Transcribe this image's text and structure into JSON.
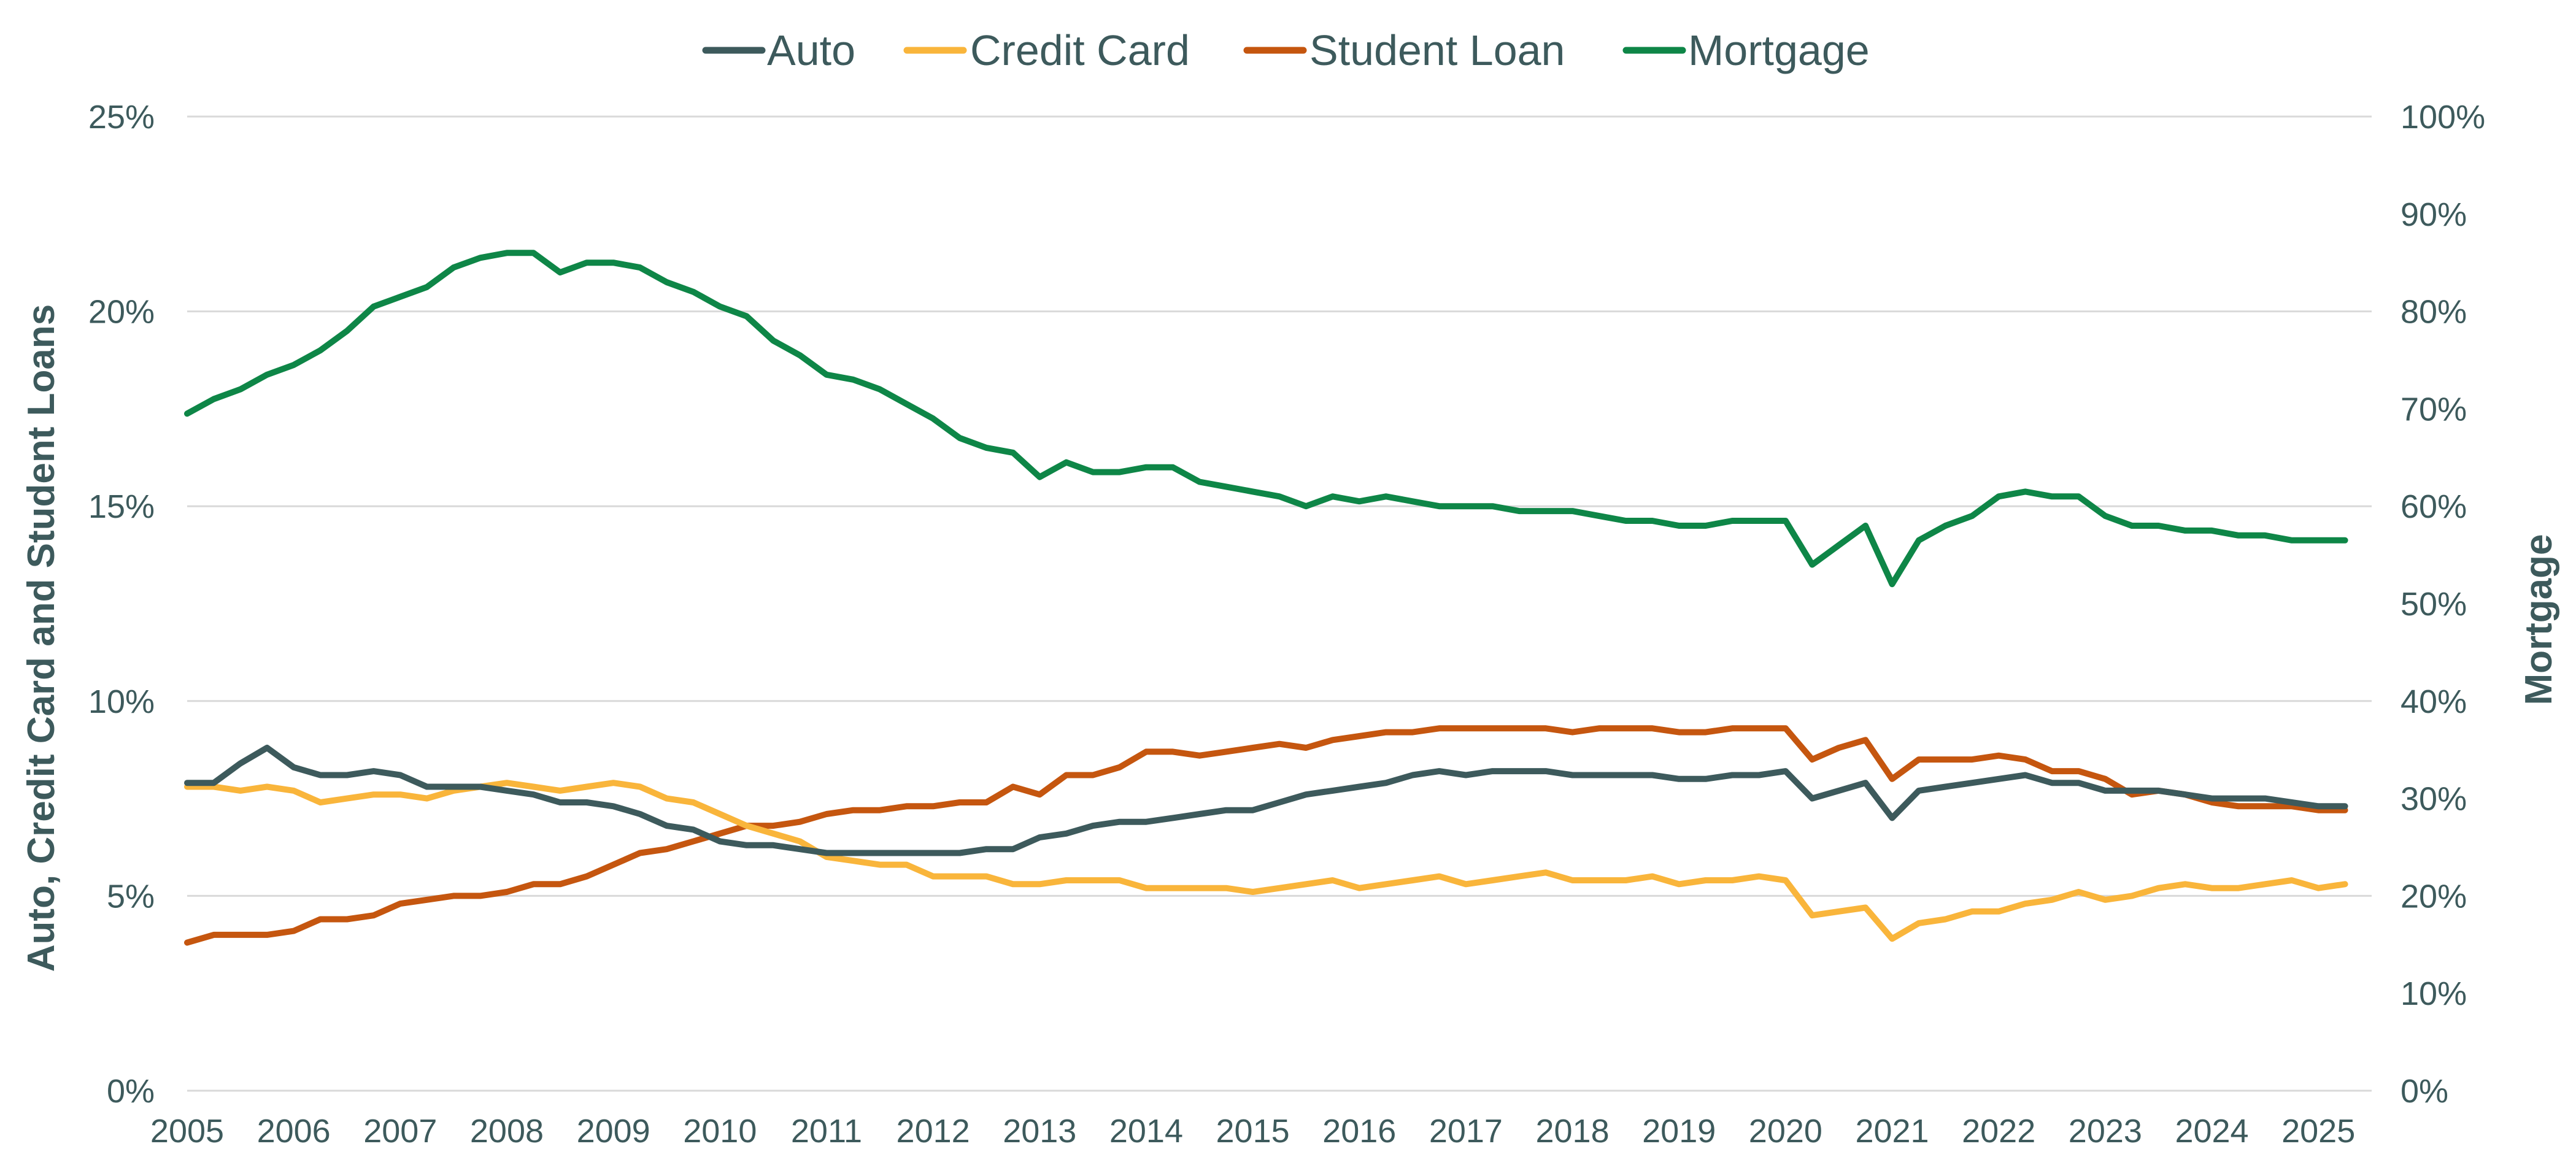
{
  "chart_data": {
    "type": "line",
    "title": "",
    "y_left_label": "Auto, Credit Card and Student Loans",
    "y_right_label": "Mortgage",
    "x_ticks": [
      "2005",
      "2006",
      "2007",
      "2008",
      "2009",
      "2010",
      "2011",
      "2012",
      "2013",
      "2014",
      "2015",
      "2016",
      "2017",
      "2018",
      "2019",
      "2020",
      "2021",
      "2022",
      "2023",
      "2024",
      "2025"
    ],
    "y_left_ticks": [
      "0%",
      "5%",
      "10%",
      "15%",
      "20%",
      "25%"
    ],
    "y_right_ticks": [
      "0%",
      "10%",
      "20%",
      "30%",
      "40%",
      "50%",
      "60%",
      "70%",
      "80%",
      "90%",
      "100%"
    ],
    "y_left_range": [
      0,
      25
    ],
    "y_right_range": [
      0,
      100
    ],
    "x_range": [
      2005,
      2025.5
    ],
    "grid": true,
    "legend_position": "top-center",
    "x_start": 2005.0,
    "x_step": 0.25,
    "series": [
      {
        "name": "Auto",
        "axis": "left",
        "color": "#3d5a5c",
        "values": [
          7.9,
          7.9,
          8.4,
          8.8,
          8.3,
          8.1,
          8.1,
          8.2,
          8.1,
          7.8,
          7.8,
          7.8,
          7.7,
          7.6,
          7.4,
          7.4,
          7.3,
          7.1,
          6.8,
          6.7,
          6.4,
          6.3,
          6.3,
          6.2,
          6.1,
          6.1,
          6.1,
          6.1,
          6.1,
          6.1,
          6.2,
          6.2,
          6.5,
          6.6,
          6.8,
          6.9,
          6.9,
          7.0,
          7.1,
          7.2,
          7.2,
          7.4,
          7.6,
          7.7,
          7.8,
          7.9,
          8.1,
          8.2,
          8.1,
          8.2,
          8.2,
          8.2,
          8.1,
          8.1,
          8.1,
          8.1,
          8.0,
          8.0,
          8.1,
          8.1,
          8.2,
          7.5,
          7.7,
          7.9,
          7.0,
          7.7,
          7.8,
          7.9,
          8.0,
          8.1,
          7.9,
          7.9,
          7.7,
          7.7,
          7.7,
          7.6,
          7.5,
          7.5,
          7.5,
          7.4,
          7.3,
          7.3
        ]
      },
      {
        "name": "Credit Card",
        "axis": "left",
        "color": "#f9b53b",
        "values": [
          7.8,
          7.8,
          7.7,
          7.8,
          7.7,
          7.4,
          7.5,
          7.6,
          7.6,
          7.5,
          7.7,
          7.8,
          7.9,
          7.8,
          7.7,
          7.8,
          7.9,
          7.8,
          7.5,
          7.4,
          7.1,
          6.8,
          6.6,
          6.4,
          6.0,
          5.9,
          5.8,
          5.8,
          5.5,
          5.5,
          5.5,
          5.3,
          5.3,
          5.4,
          5.4,
          5.4,
          5.2,
          5.2,
          5.2,
          5.2,
          5.1,
          5.2,
          5.3,
          5.4,
          5.2,
          5.3,
          5.4,
          5.5,
          5.3,
          5.4,
          5.5,
          5.6,
          5.4,
          5.4,
          5.4,
          5.5,
          5.3,
          5.4,
          5.4,
          5.5,
          5.4,
          4.5,
          4.6,
          4.7,
          3.9,
          4.3,
          4.4,
          4.6,
          4.6,
          4.8,
          4.9,
          5.1,
          4.9,
          5.0,
          5.2,
          5.3,
          5.2,
          5.2,
          5.3,
          5.4,
          5.2,
          5.3
        ]
      },
      {
        "name": "Student Loan",
        "axis": "left",
        "color": "#c5560f",
        "values": [
          3.8,
          4.0,
          4.0,
          4.0,
          4.1,
          4.4,
          4.4,
          4.5,
          4.8,
          4.9,
          5.0,
          5.0,
          5.1,
          5.3,
          5.3,
          5.5,
          5.8,
          6.1,
          6.2,
          6.4,
          6.6,
          6.8,
          6.8,
          6.9,
          7.1,
          7.2,
          7.2,
          7.3,
          7.3,
          7.4,
          7.4,
          7.8,
          7.6,
          8.1,
          8.1,
          8.3,
          8.7,
          8.7,
          8.6,
          8.7,
          8.8,
          8.9,
          8.8,
          9.0,
          9.1,
          9.2,
          9.2,
          9.3,
          9.3,
          9.3,
          9.3,
          9.3,
          9.2,
          9.3,
          9.3,
          9.3,
          9.2,
          9.2,
          9.3,
          9.3,
          9.3,
          8.5,
          8.8,
          9.0,
          8.0,
          8.5,
          8.5,
          8.5,
          8.6,
          8.5,
          8.2,
          8.2,
          8.0,
          7.6,
          7.7,
          7.6,
          7.4,
          7.3,
          7.3,
          7.3,
          7.2,
          7.2
        ]
      },
      {
        "name": "Mortgage",
        "axis": "right",
        "color": "#0e8647",
        "values": [
          69.5,
          71.0,
          72.0,
          73.5,
          74.5,
          76.0,
          78.0,
          80.5,
          81.5,
          82.5,
          84.5,
          85.5,
          86.0,
          86.0,
          84.0,
          85.0,
          85.0,
          84.5,
          83.0,
          82.0,
          80.5,
          79.5,
          77.0,
          75.5,
          73.5,
          73.0,
          72.0,
          70.5,
          69.0,
          67.0,
          66.0,
          65.5,
          63.0,
          64.5,
          63.5,
          63.5,
          64.0,
          64.0,
          62.5,
          62.0,
          61.5,
          61.0,
          60.0,
          61.0,
          60.5,
          61.0,
          60.5,
          60.0,
          60.0,
          60.0,
          59.5,
          59.5,
          59.5,
          59.0,
          58.5,
          58.5,
          58.0,
          58.0,
          58.5,
          58.5,
          58.5,
          54.0,
          56.0,
          58.0,
          52.0,
          56.5,
          58.0,
          59.0,
          61.0,
          61.5,
          61.0,
          61.0,
          59.0,
          58.0,
          58.0,
          57.5,
          57.5,
          57.0,
          57.0,
          56.5,
          56.5,
          56.5
        ]
      }
    ]
  }
}
